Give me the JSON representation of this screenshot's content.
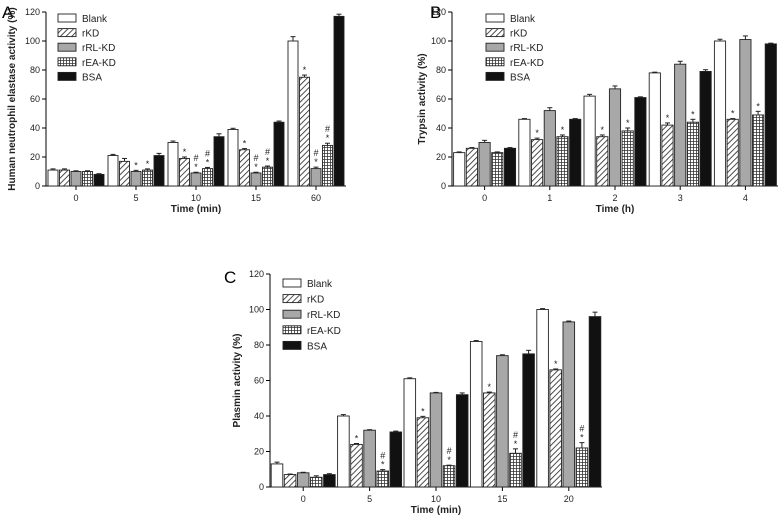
{
  "chart_data": [
    {
      "id": "A",
      "type": "bar",
      "panel_label": "A",
      "xlabel": "Time (min)",
      "ylabel": "Human neutrophil elastase activity (%)",
      "ylim": [
        0,
        120
      ],
      "yticks": [
        0,
        20,
        40,
        60,
        80,
        100,
        120
      ],
      "categories": [
        "0",
        "5",
        "10",
        "15",
        "60"
      ],
      "legend_position": "top-left",
      "series": [
        {
          "name": "Blank",
          "pattern": "white",
          "values": [
            11,
            21,
            30,
            39,
            100
          ],
          "errors": [
            0.8,
            0.8,
            1,
            0.8,
            3
          ]
        },
        {
          "name": "rKD",
          "pattern": "diagonal",
          "values": [
            11,
            17,
            19,
            25,
            75
          ],
          "errors": [
            0.8,
            2,
            1,
            0.8,
            1.5
          ]
        },
        {
          "name": "rRL-KD",
          "pattern": "gray",
          "values": [
            10,
            10,
            9,
            9,
            12
          ],
          "errors": [
            0.5,
            0.8,
            0.5,
            0.5,
            1
          ]
        },
        {
          "name": "rEA-KD",
          "pattern": "grid",
          "values": [
            10,
            11,
            12,
            13,
            28
          ],
          "errors": [
            0.5,
            0.8,
            0.8,
            0.8,
            1.5
          ]
        },
        {
          "name": "BSA",
          "pattern": "black",
          "values": [
            8,
            21,
            34,
            44,
            117
          ],
          "errors": [
            0.5,
            1.5,
            2,
            0.8,
            1.5
          ]
        }
      ],
      "annotations": [
        {
          "group": 1,
          "series": 2,
          "text": "*"
        },
        {
          "group": 1,
          "series": 3,
          "text": "*"
        },
        {
          "group": 2,
          "series": 1,
          "text": "*"
        },
        {
          "group": 2,
          "series": 2,
          "text": "*"
        },
        {
          "group": 2,
          "series": 2,
          "text": "#"
        },
        {
          "group": 2,
          "series": 3,
          "text": "*"
        },
        {
          "group": 2,
          "series": 3,
          "text": "#"
        },
        {
          "group": 3,
          "series": 1,
          "text": "*"
        },
        {
          "group": 3,
          "series": 2,
          "text": "*"
        },
        {
          "group": 3,
          "series": 2,
          "text": "#"
        },
        {
          "group": 3,
          "series": 3,
          "text": "*"
        },
        {
          "group": 3,
          "series": 3,
          "text": "#"
        },
        {
          "group": 4,
          "series": 1,
          "text": "*"
        },
        {
          "group": 4,
          "series": 2,
          "text": "*"
        },
        {
          "group": 4,
          "series": 2,
          "text": "#"
        },
        {
          "group": 4,
          "series": 3,
          "text": "*"
        },
        {
          "group": 4,
          "series": 3,
          "text": "#"
        }
      ]
    },
    {
      "id": "B",
      "type": "bar",
      "panel_label": "B",
      "xlabel": "Time (h)",
      "ylabel": "Trypsin activity (%)",
      "ylim": [
        0,
        120
      ],
      "yticks": [
        0,
        20,
        40,
        60,
        80,
        100,
        120
      ],
      "categories": [
        "0",
        "1",
        "2",
        "3",
        "4"
      ],
      "legend_position": "top-left",
      "series": [
        {
          "name": "Blank",
          "pattern": "white",
          "values": [
            23,
            46,
            62,
            78,
            100
          ],
          "errors": [
            0.5,
            0.5,
            1.2,
            0.5,
            1.2
          ]
        },
        {
          "name": "rKD",
          "pattern": "diagonal",
          "values": [
            26,
            32,
            34,
            42,
            46
          ],
          "errors": [
            0.5,
            1,
            1.2,
            1.5,
            0.5
          ]
        },
        {
          "name": "rRL-KD",
          "pattern": "gray",
          "values": [
            30,
            52,
            67,
            84,
            101
          ],
          "errors": [
            1.5,
            2,
            2,
            2,
            2.5
          ]
        },
        {
          "name": "rEA-KD",
          "pattern": "grid",
          "values": [
            23,
            34,
            38,
            44,
            49
          ],
          "errors": [
            0.5,
            1.2,
            2,
            2,
            2.5
          ]
        },
        {
          "name": "BSA",
          "pattern": "black",
          "values": [
            26,
            46,
            61,
            79,
            98
          ],
          "errors": [
            0.5,
            0.5,
            0.5,
            1.2,
            0.5
          ]
        }
      ],
      "annotations": [
        {
          "group": 1,
          "series": 1,
          "text": "*"
        },
        {
          "group": 1,
          "series": 3,
          "text": "*"
        },
        {
          "group": 2,
          "series": 1,
          "text": "*"
        },
        {
          "group": 2,
          "series": 3,
          "text": "*"
        },
        {
          "group": 3,
          "series": 1,
          "text": "*"
        },
        {
          "group": 3,
          "series": 3,
          "text": "*"
        },
        {
          "group": 4,
          "series": 1,
          "text": "*"
        },
        {
          "group": 4,
          "series": 3,
          "text": "*"
        }
      ]
    },
    {
      "id": "C",
      "type": "bar",
      "panel_label": "C",
      "xlabel": "Time (min)",
      "ylabel": "Plasmin activity (%)",
      "ylim": [
        0,
        120
      ],
      "yticks": [
        0,
        20,
        40,
        60,
        80,
        100,
        120
      ],
      "categories": [
        "0",
        "5",
        "10",
        "15",
        "20"
      ],
      "legend_position": "top-left",
      "series": [
        {
          "name": "Blank",
          "pattern": "white",
          "values": [
            13,
            40,
            61,
            82,
            100
          ],
          "errors": [
            1,
            0.8,
            0.5,
            0.5,
            0.5
          ]
        },
        {
          "name": "rKD",
          "pattern": "diagonal",
          "values": [
            7,
            24,
            39,
            53,
            66
          ],
          "errors": [
            0.3,
            0.5,
            0.8,
            0.5,
            0.5
          ]
        },
        {
          "name": "rRL-KD",
          "pattern": "gray",
          "values": [
            8,
            32,
            53,
            74,
            93
          ],
          "errors": [
            0.3,
            0.3,
            0.3,
            0.5,
            0.5
          ]
        },
        {
          "name": "rEA-KD",
          "pattern": "grid",
          "values": [
            5.5,
            9,
            12,
            19,
            22
          ],
          "errors": [
            0.8,
            0.8,
            0.3,
            2.5,
            3
          ]
        },
        {
          "name": "BSA",
          "pattern": "black",
          "values": [
            7,
            31,
            52,
            75,
            96
          ],
          "errors": [
            0.5,
            0.5,
            1,
            2,
            2.5
          ]
        }
      ],
      "annotations": [
        {
          "group": 1,
          "series": 1,
          "text": "*"
        },
        {
          "group": 1,
          "series": 3,
          "text": "*"
        },
        {
          "group": 1,
          "series": 3,
          "text": "#"
        },
        {
          "group": 2,
          "series": 1,
          "text": "*"
        },
        {
          "group": 2,
          "series": 3,
          "text": "*"
        },
        {
          "group": 2,
          "series": 3,
          "text": "#"
        },
        {
          "group": 3,
          "series": 1,
          "text": "*"
        },
        {
          "group": 3,
          "series": 3,
          "text": "*"
        },
        {
          "group": 3,
          "series": 3,
          "text": "#"
        },
        {
          "group": 4,
          "series": 1,
          "text": "*"
        },
        {
          "group": 4,
          "series": 3,
          "text": "*"
        },
        {
          "group": 4,
          "series": 3,
          "text": "#"
        }
      ]
    }
  ]
}
